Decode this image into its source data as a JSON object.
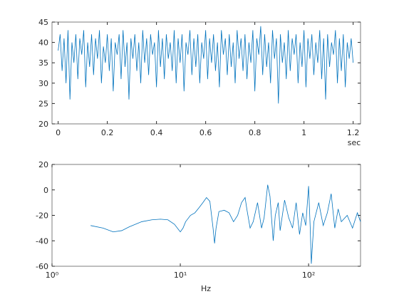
{
  "chart_data": [
    {
      "type": "line",
      "xlabel": "sec",
      "color": "#0072bd",
      "xlim": [
        -0.025,
        1.23
      ],
      "ylim": [
        20,
        45
      ],
      "xticks": [
        0,
        0.2,
        0.4,
        0.6,
        0.8,
        1,
        1.2
      ],
      "yticks": [
        20,
        25,
        30,
        35,
        40,
        45
      ],
      "x": [
        0,
        0.008,
        0.016,
        0.024,
        0.032,
        0.04,
        0.048,
        0.056,
        0.064,
        0.072,
        0.08,
        0.088,
        0.096,
        0.104,
        0.112,
        0.12,
        0.128,
        0.136,
        0.144,
        0.152,
        0.16,
        0.168,
        0.176,
        0.184,
        0.192,
        0.2,
        0.208,
        0.216,
        0.224,
        0.232,
        0.24,
        0.248,
        0.256,
        0.264,
        0.272,
        0.28,
        0.288,
        0.296,
        0.304,
        0.312,
        0.32,
        0.328,
        0.336,
        0.344,
        0.352,
        0.36,
        0.368,
        0.376,
        0.384,
        0.392,
        0.4,
        0.408,
        0.416,
        0.424,
        0.432,
        0.44,
        0.448,
        0.456,
        0.464,
        0.472,
        0.48,
        0.488,
        0.496,
        0.504,
        0.512,
        0.52,
        0.528,
        0.536,
        0.544,
        0.552,
        0.56,
        0.568,
        0.576,
        0.584,
        0.592,
        0.6,
        0.608,
        0.616,
        0.624,
        0.632,
        0.64,
        0.648,
        0.656,
        0.664,
        0.672,
        0.68,
        0.688,
        0.696,
        0.704,
        0.712,
        0.72,
        0.728,
        0.736,
        0.744,
        0.752,
        0.76,
        0.768,
        0.776,
        0.784,
        0.792,
        0.8,
        0.808,
        0.816,
        0.824,
        0.832,
        0.84,
        0.848,
        0.856,
        0.864,
        0.872,
        0.88,
        0.888,
        0.896,
        0.904,
        0.912,
        0.92,
        0.928,
        0.936,
        0.944,
        0.952,
        0.96,
        0.968,
        0.976,
        0.984,
        0.992,
        1,
        1.008,
        1.016,
        1.024,
        1.032,
        1.04,
        1.048,
        1.056,
        1.064,
        1.072,
        1.08,
        1.088,
        1.096,
        1.104,
        1.112,
        1.12,
        1.128,
        1.136,
        1.144,
        1.152,
        1.16,
        1.168,
        1.176,
        1.184,
        1.192,
        1.2
      ],
      "values": [
        38,
        42,
        33,
        41,
        30,
        43,
        26,
        40,
        35,
        42,
        31,
        41,
        37,
        43,
        29,
        40,
        34,
        42,
        32,
        41,
        36,
        43,
        30,
        39,
        35,
        42,
        33,
        41,
        28,
        40,
        37,
        42,
        31,
        43,
        34,
        40,
        26,
        41,
        36,
        42,
        33,
        40,
        30,
        43,
        35,
        41,
        32,
        42,
        37,
        40,
        29,
        43,
        34,
        41,
        31,
        42,
        36,
        40,
        33,
        43,
        30,
        41,
        35,
        42,
        28,
        40,
        37,
        43,
        32,
        41,
        34,
        42,
        30,
        40,
        36,
        43,
        31,
        41,
        35,
        42,
        33,
        40,
        29,
        43,
        37,
        41,
        32,
        42,
        34,
        40,
        30,
        43,
        36,
        41,
        33,
        42,
        31,
        40,
        35,
        43,
        28,
        41,
        37,
        44,
        32,
        42,
        34,
        40,
        30,
        43,
        36,
        41,
        25,
        42,
        35,
        40,
        31,
        43,
        33,
        41,
        37,
        42,
        30,
        40,
        34,
        43,
        29,
        41,
        36,
        42,
        32,
        40,
        35,
        43,
        31,
        41,
        26,
        42,
        34,
        40,
        37,
        43,
        30,
        41,
        33,
        42,
        29,
        40,
        36,
        41,
        35
      ],
      "series_name": null
    },
    {
      "type": "line",
      "xlabel": "Hz",
      "color": "#0072bd",
      "xscale": "log",
      "xlim": [
        1,
        254
      ],
      "ylim": [
        -60,
        20
      ],
      "xticks": [
        {
          "value": 1,
          "label": "10⁰"
        },
        {
          "value": 10,
          "label": "10¹"
        },
        {
          "value": 100,
          "label": "10²"
        }
      ],
      "yticks": [
        -60,
        -40,
        -20,
        0,
        20
      ],
      "x": [
        2,
        2.5,
        3,
        3.5,
        4,
        5,
        6,
        7,
        8,
        9,
        10,
        10.5,
        11,
        12,
        13,
        14,
        15,
        16,
        17,
        18,
        18.5,
        19,
        20,
        22,
        24,
        26,
        28,
        30,
        32,
        33,
        35,
        37,
        40,
        43,
        45,
        48,
        50,
        53,
        55,
        58,
        60,
        65,
        70,
        75,
        80,
        85,
        90,
        95,
        100,
        103,
        105,
        110,
        120,
        130,
        140,
        150,
        160,
        170,
        180,
        200,
        220,
        240,
        254
      ],
      "values": [
        -28,
        -30,
        -33,
        -32,
        -29,
        -25,
        -23.5,
        -23,
        -23.5,
        -27,
        -33,
        -30,
        -25,
        -20,
        -18,
        -14,
        -10,
        -6,
        -9,
        -30,
        -42,
        -30,
        -17,
        -16,
        -18,
        -25,
        -20,
        -10,
        -6,
        -15,
        -30,
        -25,
        -10,
        -30,
        -22,
        4,
        -5,
        -40,
        -20,
        -10,
        -32,
        -8,
        -22,
        -30,
        -10,
        -35,
        -18,
        -28,
        3,
        -30,
        -58,
        -25,
        -10,
        -28,
        -18,
        -3,
        -30,
        -15,
        -25,
        -20,
        -30,
        -18,
        -25
      ]
    }
  ]
}
